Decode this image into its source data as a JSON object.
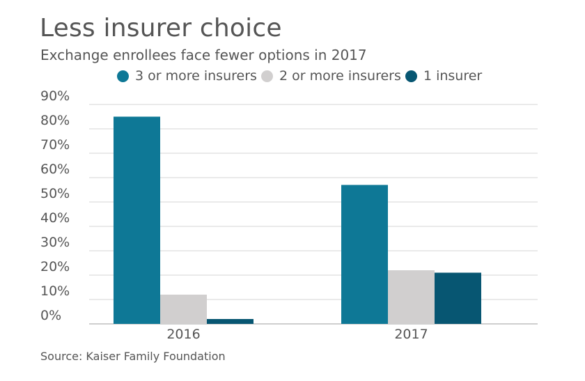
{
  "header": {
    "title": "Less insurer choice",
    "subtitle": "Exchange enrollees face fewer options in 2017"
  },
  "footer": {
    "source": "Source: Kaiser Family Foundation"
  },
  "chart_data": {
    "type": "bar",
    "title": "Less insurer choice",
    "subtitle": "Exchange enrollees face fewer options in 2017",
    "xlabel": "",
    "ylabel": "",
    "categories": [
      "2016",
      "2017"
    ],
    "series": [
      {
        "name": "3 or more insurers",
        "values": [
          85,
          57
        ],
        "color": "#0e7896"
      },
      {
        "name": "2 or more insurers",
        "values": [
          12,
          22
        ],
        "color": "#d1cfcf"
      },
      {
        "name": "1 insurer",
        "values": [
          2,
          21
        ],
        "color": "#075672"
      }
    ],
    "ylim": [
      0,
      90
    ],
    "yticks": [
      "0%",
      "10%",
      "20%",
      "30%",
      "40%",
      "50%",
      "60%",
      "70%",
      "80%",
      "90%"
    ],
    "grid": true,
    "legend_position": "top"
  }
}
